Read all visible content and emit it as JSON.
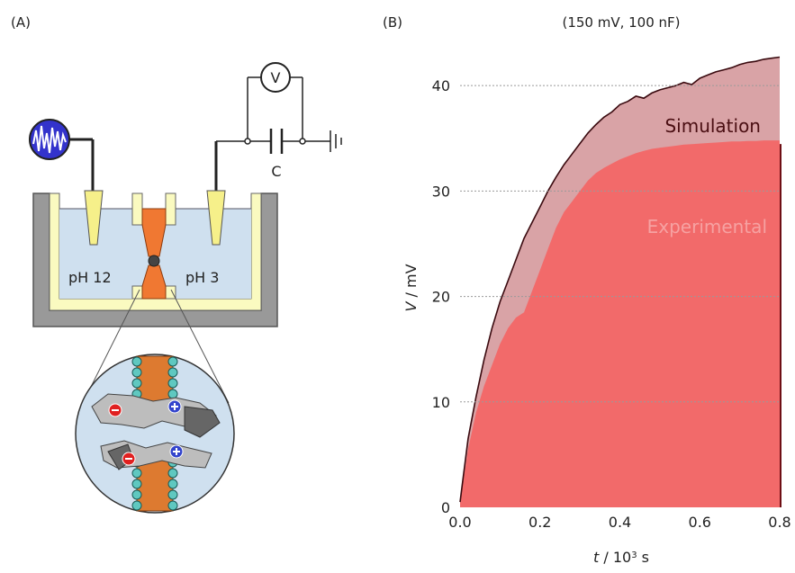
{
  "panel_a": {
    "label": "(A)",
    "left_ph": "pH 12",
    "right_ph": "pH 3",
    "voltmeter": "V",
    "capacitor": "C",
    "icons": [
      "signal-generator-icon",
      "voltmeter-icon",
      "capacitor-icon",
      "ground-icon",
      "electrode-icon",
      "pore-protein-icon",
      "negative-charge-icon",
      "positive-charge-icon"
    ]
  },
  "panel_b": {
    "label": "(B)"
  },
  "chart_data": {
    "type": "area",
    "title": "(150 mV, 100 nF)",
    "xlabel_var": "t",
    "xlabel_rest": " / 10",
    "xlabel_exp": "3",
    "xlabel_unit": " s",
    "ylabel_var": "V",
    "ylabel_rest": " / mV",
    "xlim": [
      0,
      0.8
    ],
    "ylim": [
      0,
      43
    ],
    "xticks": [
      "0.0",
      "0.2",
      "0.4",
      "0.6",
      "0.8"
    ],
    "yticks": [
      "0",
      "10",
      "20",
      "30",
      "40"
    ],
    "grid": "horizontal dotted at y ticks",
    "colors": {
      "simulation_fill": "#d9a3a6",
      "simulation_line": "#3a0a0f",
      "experimental_fill": "#6e0e14",
      "experimental_edge": "#f26a6a"
    },
    "series": [
      {
        "name": "Simulation",
        "x": [
          0.0,
          0.005,
          0.02,
          0.04,
          0.06,
          0.08,
          0.1,
          0.12,
          0.14,
          0.16,
          0.18,
          0.2,
          0.22,
          0.24,
          0.26,
          0.28,
          0.3,
          0.32,
          0.34,
          0.36,
          0.38,
          0.4,
          0.42,
          0.44,
          0.46,
          0.48,
          0.5,
          0.52,
          0.54,
          0.56,
          0.58,
          0.6,
          0.62,
          0.64,
          0.66,
          0.68,
          0.7,
          0.72,
          0.74,
          0.76,
          0.78,
          0.8
        ],
        "values": [
          0.5,
          2.0,
          6.5,
          10.5,
          14.0,
          17.0,
          19.5,
          21.5,
          23.5,
          25.5,
          27.0,
          28.5,
          30.0,
          31.3,
          32.5,
          33.5,
          34.5,
          35.5,
          36.3,
          37.0,
          37.5,
          38.2,
          38.5,
          39.0,
          38.8,
          39.3,
          39.6,
          39.8,
          40.0,
          40.3,
          40.1,
          40.7,
          41.0,
          41.3,
          41.5,
          41.7,
          42.0,
          42.2,
          42.3,
          42.5,
          42.6,
          42.7
        ]
      },
      {
        "name": "Experimental",
        "x": [
          0.0,
          0.01,
          0.02,
          0.04,
          0.06,
          0.08,
          0.1,
          0.12,
          0.14,
          0.16,
          0.18,
          0.2,
          0.22,
          0.24,
          0.26,
          0.28,
          0.3,
          0.32,
          0.34,
          0.36,
          0.38,
          0.4,
          0.42,
          0.44,
          0.46,
          0.48,
          0.5,
          0.52,
          0.54,
          0.56,
          0.58,
          0.6,
          0.62,
          0.64,
          0.66,
          0.68,
          0.7,
          0.72,
          0.74,
          0.76,
          0.78,
          0.8
        ],
        "values": [
          0.5,
          3.0,
          5.5,
          9.0,
          11.5,
          13.5,
          15.5,
          17.0,
          18.0,
          18.5,
          20.5,
          22.5,
          24.5,
          26.5,
          28.0,
          29.0,
          30.0,
          31.0,
          31.7,
          32.2,
          32.6,
          33.0,
          33.3,
          33.6,
          33.8,
          34.0,
          34.1,
          34.2,
          34.3,
          34.4,
          34.45,
          34.5,
          34.55,
          34.6,
          34.65,
          34.7,
          34.7,
          34.75,
          34.75,
          34.8,
          34.8,
          34.8
        ]
      }
    ]
  }
}
